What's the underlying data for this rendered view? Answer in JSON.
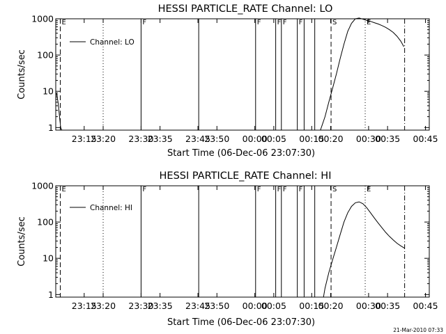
{
  "footer": {
    "timestamp": "21-Mar-2010 07:33"
  },
  "colors": {
    "background": "#ffffff",
    "foreground": "#000000"
  },
  "chart_data": [
    {
      "type": "line",
      "title": "HESSI PARTICLE_RATE Channel: LO",
      "xlabel": "Start Time (06-Dec-06 23:07:30)",
      "ylabel": "Counts/sec",
      "yscale": "log",
      "xlim": [
        0,
        38
      ],
      "ylim": [
        0.85,
        1000
      ],
      "x_unit": "minutes after 23:07:30",
      "x_ticks": [
        {
          "x": 7.5,
          "label": "23:15"
        },
        {
          "x": 12.5,
          "label": "23:20"
        },
        {
          "x": 22.5,
          "label": "23:30"
        },
        {
          "x": 27.5,
          "label": "23:35"
        },
        {
          "x": 37.5,
          "label": "23:45"
        },
        {
          "x": 42.5,
          "label": "23:50"
        },
        {
          "x": 52.5,
          "label": "00:00"
        },
        {
          "x": 57.5,
          "label": "00:05"
        },
        {
          "x": 67.5,
          "label": "00:15"
        },
        {
          "x": 72.5,
          "label": "00:20"
        },
        {
          "x": 82.5,
          "label": "00:30"
        },
        {
          "x": 87.5,
          "label": "00:35"
        },
        {
          "x": 97.5,
          "label": "00:45"
        }
      ],
      "y_ticks": [
        {
          "y": 1,
          "label": "1"
        },
        {
          "y": 10,
          "label": "10"
        },
        {
          "y": 100,
          "label": "100"
        },
        {
          "y": 1000,
          "label": "1000"
        }
      ],
      "legend": {
        "position": "top-left",
        "entries": [
          "Channel: LO"
        ]
      },
      "event_lines": [
        {
          "x": 1.2,
          "style": "dashed",
          "label": "E"
        },
        {
          "x": 12.5,
          "style": "dotted",
          "label": ""
        },
        {
          "x": 22.5,
          "style": "solid",
          "label": "F"
        },
        {
          "x": 37.7,
          "style": "solid",
          "label": ""
        },
        {
          "x": 52.7,
          "style": "solid",
          "label": "F"
        },
        {
          "x": 58.0,
          "style": "solid",
          "label": "F"
        },
        {
          "x": 59.5,
          "style": "solid",
          "label": "F"
        },
        {
          "x": 63.7,
          "style": "solid",
          "label": "F"
        },
        {
          "x": 65.5,
          "style": "solid",
          "label": ""
        },
        {
          "x": 68.3,
          "style": "solid",
          "label": ""
        },
        {
          "x": 72.6,
          "style": "dashed",
          "label": "S"
        },
        {
          "x": 81.6,
          "style": "dotted",
          "label": "E"
        },
        {
          "x": 92.0,
          "style": "dashdot",
          "label": ""
        }
      ],
      "series": [
        {
          "name": "Channel: LO",
          "points": [
            [
              0.2,
              9
            ],
            [
              0.6,
              5
            ],
            [
              1.0,
              2
            ],
            [
              1.3,
              1
            ],
            [
              1.6,
              0.85
            ]
          ]
        },
        {
          "name": "Channel: LO",
          "points": [
            [
              69.8,
              0.85
            ],
            [
              70.3,
              1.2
            ],
            [
              71.0,
              2
            ],
            [
              72.0,
              5
            ],
            [
              73.0,
              12
            ],
            [
              74.0,
              30
            ],
            [
              75.0,
              80
            ],
            [
              76.0,
              200
            ],
            [
              77.0,
              450
            ],
            [
              78.0,
              750
            ],
            [
              79.0,
              1000
            ],
            [
              80.0,
              1050
            ],
            [
              81.0,
              980
            ],
            [
              82.0,
              900
            ],
            [
              83.0,
              850
            ],
            [
              84.0,
              780
            ],
            [
              85.0,
              720
            ],
            [
              86.0,
              650
            ],
            [
              87.0,
              580
            ],
            [
              88.0,
              500
            ],
            [
              89.0,
              420
            ],
            [
              90.0,
              330
            ],
            [
              91.0,
              240
            ],
            [
              91.8,
              170
            ]
          ]
        }
      ]
    },
    {
      "type": "line",
      "title": "HESSI PARTICLE_RATE Channel: HI",
      "xlabel": "Start Time (06-Dec-06 23:07:30)",
      "ylabel": "Counts/sec",
      "yscale": "log",
      "xlim": [
        0,
        38
      ],
      "ylim": [
        0.85,
        1000
      ],
      "x_unit": "minutes after 23:07:30",
      "x_ticks": [
        {
          "x": 7.5,
          "label": "23:15"
        },
        {
          "x": 12.5,
          "label": "23:20"
        },
        {
          "x": 22.5,
          "label": "23:30"
        },
        {
          "x": 27.5,
          "label": "23:35"
        },
        {
          "x": 37.5,
          "label": "23:45"
        },
        {
          "x": 42.5,
          "label": "23:50"
        },
        {
          "x": 52.5,
          "label": "00:00"
        },
        {
          "x": 57.5,
          "label": "00:05"
        },
        {
          "x": 67.5,
          "label": "00:15"
        },
        {
          "x": 72.5,
          "label": "00:20"
        },
        {
          "x": 82.5,
          "label": "00:30"
        },
        {
          "x": 87.5,
          "label": "00:35"
        },
        {
          "x": 97.5,
          "label": "00:45"
        }
      ],
      "y_ticks": [
        {
          "y": 1,
          "label": "1"
        },
        {
          "y": 10,
          "label": "10"
        },
        {
          "y": 100,
          "label": "100"
        },
        {
          "y": 1000,
          "label": "1000"
        }
      ],
      "legend": {
        "position": "top-left",
        "entries": [
          "Channel: HI"
        ]
      },
      "event_lines": [
        {
          "x": 1.2,
          "style": "dashed",
          "label": "E"
        },
        {
          "x": 12.5,
          "style": "dotted",
          "label": ""
        },
        {
          "x": 22.5,
          "style": "solid",
          "label": "F"
        },
        {
          "x": 37.7,
          "style": "solid",
          "label": ""
        },
        {
          "x": 52.7,
          "style": "solid",
          "label": "F"
        },
        {
          "x": 58.0,
          "style": "solid",
          "label": "F"
        },
        {
          "x": 59.5,
          "style": "solid",
          "label": "F"
        },
        {
          "x": 63.7,
          "style": "solid",
          "label": "F"
        },
        {
          "x": 65.5,
          "style": "solid",
          "label": ""
        },
        {
          "x": 68.3,
          "style": "solid",
          "label": ""
        },
        {
          "x": 72.6,
          "style": "dashed",
          "label": "S"
        },
        {
          "x": 81.6,
          "style": "dotted",
          "label": "E"
        },
        {
          "x": 92.0,
          "style": "dashdot",
          "label": ""
        }
      ],
      "series": [
        {
          "name": "Channel: HI",
          "points": [
            [
              70.6,
              0.85
            ],
            [
              71.0,
              1.5
            ],
            [
              72.0,
              4
            ],
            [
              73.0,
              9
            ],
            [
              74.0,
              20
            ],
            [
              75.0,
              45
            ],
            [
              76.0,
              100
            ],
            [
              77.0,
              180
            ],
            [
              78.0,
              270
            ],
            [
              79.0,
              340
            ],
            [
              80.0,
              360
            ],
            [
              81.0,
              320
            ],
            [
              82.0,
              250
            ],
            [
              83.0,
              180
            ],
            [
              84.0,
              130
            ],
            [
              85.0,
              95
            ],
            [
              86.0,
              70
            ],
            [
              87.0,
              52
            ],
            [
              88.0,
              40
            ],
            [
              89.0,
              32
            ],
            [
              90.0,
              26
            ],
            [
              91.0,
              22
            ],
            [
              92.0,
              19
            ]
          ]
        }
      ]
    }
  ]
}
